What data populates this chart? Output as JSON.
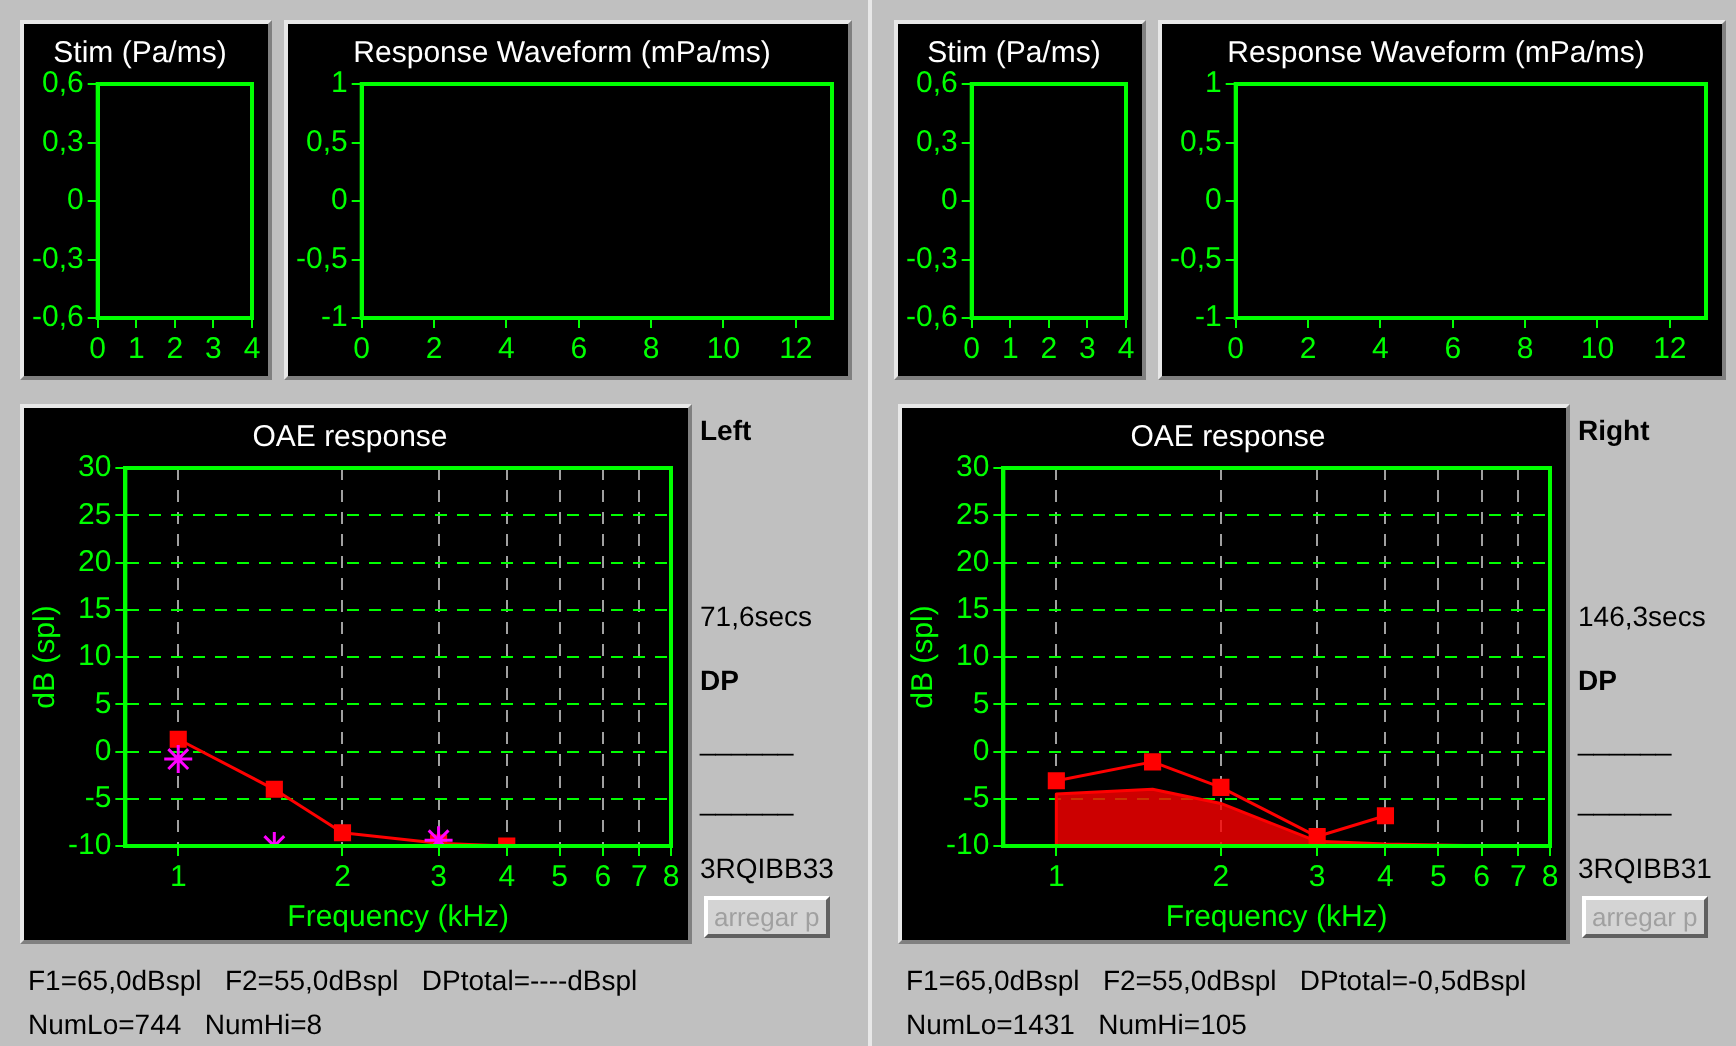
{
  "chart_data": [
    {
      "type": "line",
      "title": "Stim (Pa/ms)",
      "xlim": [
        0,
        4
      ],
      "xticks": [
        0,
        1,
        2,
        3,
        4
      ],
      "ylim": [
        -0.6,
        0.6
      ],
      "yticks": [
        {
          "value": -0.6,
          "label": "-0,6"
        },
        {
          "value": -0.3,
          "label": "-0,3"
        },
        0,
        {
          "value": 0.3,
          "label": "0,3"
        },
        {
          "value": 0.6,
          "label": "0,6"
        }
      ]
    },
    {
      "type": "line",
      "title": "Response Waveform (mPa/ms)",
      "xlim": [
        0,
        13
      ],
      "xticks": [
        0,
        2,
        4,
        6,
        8,
        10,
        12
      ],
      "ylim": [
        -1,
        1
      ],
      "yticks": [
        -1,
        {
          "value": -0.5,
          "label": "-0,5"
        },
        0,
        {
          "value": 0.5,
          "label": "0,5"
        },
        1
      ]
    },
    {
      "type": "line",
      "title": "OAE response",
      "xlabel": "Frequency (kHz)",
      "ylabel": "dB (spl)",
      "log": "x",
      "grid": true,
      "xlim": [
        0.8,
        8
      ],
      "xticks": [
        1,
        2,
        3,
        4,
        5,
        6,
        7,
        8
      ],
      "ylim": [
        -10,
        30
      ],
      "yticks": [
        -10,
        -5,
        0,
        5,
        10,
        15,
        20,
        25,
        30
      ],
      "series": [
        {
          "type": "line",
          "color": "#ff0000",
          "marker": "square",
          "x": [
            1,
            1.5,
            2,
            3,
            4
          ],
          "values": [
            1.3,
            -4,
            -8.6,
            -9.7,
            -10
          ]
        },
        {
          "type": "scatter",
          "color": "#ff00ff",
          "marker": "cross",
          "x": [
            1,
            1.5,
            3
          ],
          "values": [
            -0.8,
            -10,
            -9.4
          ]
        }
      ],
      "annotations": [
        "Left",
        "71,6secs",
        "DP",
        "______",
        "______",
        "3RQIBB33",
        "arregar p",
        "F1=65,0dBspl   F2=55,0dBspl   DPtotal=----dBspl",
        "NumLo=744   NumHi=8"
      ]
    },
    {
      "type": "line",
      "title": "Stim (Pa/ms)",
      "xlim": [
        0,
        4
      ],
      "xticks": [
        0,
        1,
        2,
        3,
        4
      ],
      "ylim": [
        -0.6,
        0.6
      ],
      "yticks": [
        {
          "value": -0.6,
          "label": "-0,6"
        },
        {
          "value": -0.3,
          "label": "-0,3"
        },
        0,
        {
          "value": 0.3,
          "label": "0,3"
        },
        {
          "value": 0.6,
          "label": "0,6"
        }
      ]
    },
    {
      "type": "line",
      "title": "Response Waveform (mPa/ms)",
      "xlim": [
        0,
        13
      ],
      "xticks": [
        0,
        2,
        4,
        6,
        8,
        10,
        12
      ],
      "ylim": [
        -1,
        1
      ],
      "yticks": [
        -1,
        {
          "value": -0.5,
          "label": "-0,5"
        },
        0,
        {
          "value": 0.5,
          "label": "0,5"
        },
        1
      ]
    },
    {
      "type": "line",
      "title": "OAE response",
      "xlabel": "Frequency (kHz)",
      "ylabel": "dB (spl)",
      "log": "x",
      "grid": true,
      "xlim": [
        0.8,
        8
      ],
      "xticks": [
        1,
        2,
        3,
        4,
        5,
        6,
        7,
        8
      ],
      "ylim": [
        -10,
        30
      ],
      "yticks": [
        -10,
        -5,
        0,
        5,
        10,
        15,
        20,
        25,
        30
      ],
      "series": [
        {
          "type": "area",
          "color": "#ff0000",
          "marker": "none",
          "x": [
            1,
            1,
            1.5,
            2,
            3,
            4,
            6.3
          ],
          "values": [
            -10,
            -4.5,
            -4,
            -5.5,
            -9.5,
            -9.8,
            -10
          ]
        },
        {
          "type": "line",
          "color": "#ff0000",
          "marker": "square",
          "x": [
            1,
            1.5,
            2,
            3,
            4
          ],
          "values": [
            -3.1,
            -1.1,
            -3.8,
            -9,
            -6.8
          ]
        }
      ],
      "annotations": [
        "Right",
        "146,3secs",
        "DP",
        "______",
        "______",
        "3RQIBB31",
        "arregar p",
        "F1=65,0dBspl   F2=55,0dBspl   DPtotal=-0,5dBspl",
        "NumLo=1431   NumHi=105"
      ]
    }
  ]
}
